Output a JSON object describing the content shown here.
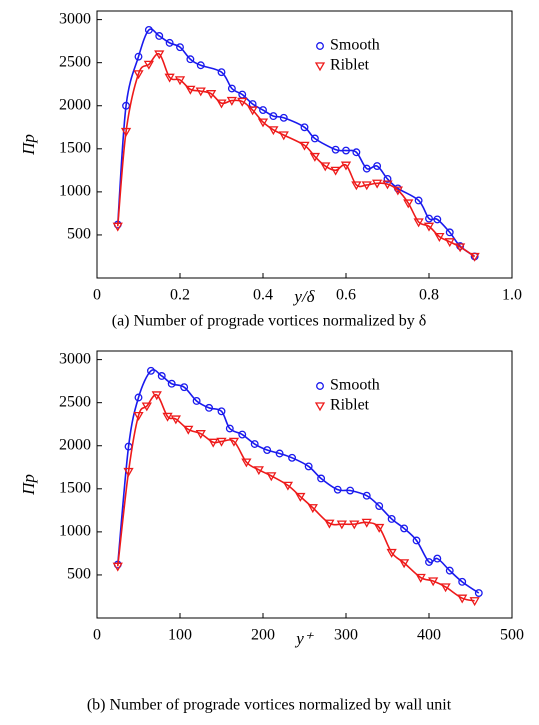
{
  "chart_data": [
    {
      "type": "line",
      "caption": "(a) Number of prograde vortices normalized by δ",
      "xlabel": "y/δ",
      "ylabel": "Πp",
      "xlim": [
        0,
        1
      ],
      "xticks": [
        0,
        0.2,
        0.4,
        0.6,
        0.8,
        {
          "value": 1,
          "label": "1.0"
        }
      ],
      "ylim": [
        0,
        3100
      ],
      "yticks": [
        500,
        1000,
        1500,
        2000,
        2500,
        3000
      ],
      "series": [
        {
          "name": "Smooth",
          "color": "#1a1aee",
          "marker": "circle",
          "x": [
            0.05,
            0.07,
            0.1,
            0.125,
            0.15,
            0.175,
            0.2,
            0.225,
            0.25,
            0.3,
            0.325,
            0.35,
            0.375,
            0.4,
            0.425,
            0.45,
            0.5,
            0.525,
            0.575,
            0.6,
            0.625,
            0.65,
            0.675,
            0.7,
            0.725,
            0.775,
            0.8,
            0.82,
            0.85,
            0.875,
            0.91
          ],
          "values": [
            620,
            2000,
            2570,
            2880,
            2810,
            2730,
            2680,
            2540,
            2470,
            2390,
            2200,
            2130,
            2020,
            1950,
            1880,
            1860,
            1750,
            1620,
            1490,
            1480,
            1460,
            1270,
            1300,
            1150,
            1040,
            900,
            690,
            680,
            530,
            370,
            250
          ]
        },
        {
          "name": "Riblet",
          "color": "#ee1a1a",
          "marker": "triangle-down",
          "x": [
            0.05,
            0.07,
            0.1,
            0.125,
            0.15,
            0.175,
            0.2,
            0.225,
            0.25,
            0.275,
            0.3,
            0.325,
            0.35,
            0.375,
            0.4,
            0.425,
            0.45,
            0.5,
            0.525,
            0.55,
            0.575,
            0.6,
            0.625,
            0.65,
            0.675,
            0.7,
            0.725,
            0.75,
            0.775,
            0.8,
            0.825,
            0.85,
            0.875,
            0.91
          ],
          "values": [
            600,
            1700,
            2370,
            2480,
            2600,
            2330,
            2300,
            2190,
            2170,
            2140,
            2030,
            2060,
            2050,
            1950,
            1810,
            1720,
            1660,
            1540,
            1410,
            1300,
            1250,
            1310,
            1080,
            1080,
            1100,
            1090,
            1020,
            870,
            650,
            600,
            480,
            420,
            360,
            250
          ]
        }
      ]
    },
    {
      "type": "line",
      "caption": "(b) Number of prograde vortices normalized by wall unit",
      "xlabel": "y⁺",
      "ylabel": "Πp",
      "xlim": [
        0,
        500
      ],
      "xticks": [
        0,
        100,
        200,
        300,
        400,
        500
      ],
      "ylim": [
        0,
        3100
      ],
      "yticks": [
        500,
        1000,
        1500,
        2000,
        2500,
        3000
      ],
      "series": [
        {
          "name": "Smooth",
          "color": "#1a1aee",
          "marker": "circle",
          "x": [
            25,
            38,
            50,
            65,
            78,
            90,
            105,
            120,
            135,
            150,
            160,
            175,
            190,
            205,
            220,
            235,
            255,
            270,
            290,
            305,
            325,
            340,
            355,
            370,
            385,
            400,
            410,
            425,
            440,
            460
          ],
          "values": [
            620,
            1990,
            2560,
            2870,
            2810,
            2720,
            2680,
            2520,
            2440,
            2400,
            2200,
            2130,
            2020,
            1950,
            1910,
            1860,
            1760,
            1620,
            1490,
            1480,
            1420,
            1300,
            1150,
            1040,
            900,
            650,
            690,
            550,
            420,
            290
          ]
        },
        {
          "name": "Riblet",
          "color": "#ee1a1a",
          "marker": "triangle-down",
          "x": [
            25,
            38,
            50,
            60,
            72,
            85,
            95,
            110,
            125,
            140,
            150,
            165,
            180,
            195,
            210,
            230,
            245,
            260,
            280,
            295,
            310,
            325,
            340,
            355,
            370,
            390,
            405,
            420,
            440,
            455
          ],
          "values": [
            600,
            1700,
            2350,
            2460,
            2590,
            2340,
            2310,
            2190,
            2140,
            2040,
            2050,
            2050,
            1810,
            1720,
            1650,
            1540,
            1410,
            1280,
            1100,
            1090,
            1090,
            1110,
            1050,
            760,
            640,
            470,
            430,
            360,
            230,
            200
          ]
        }
      ]
    }
  ]
}
